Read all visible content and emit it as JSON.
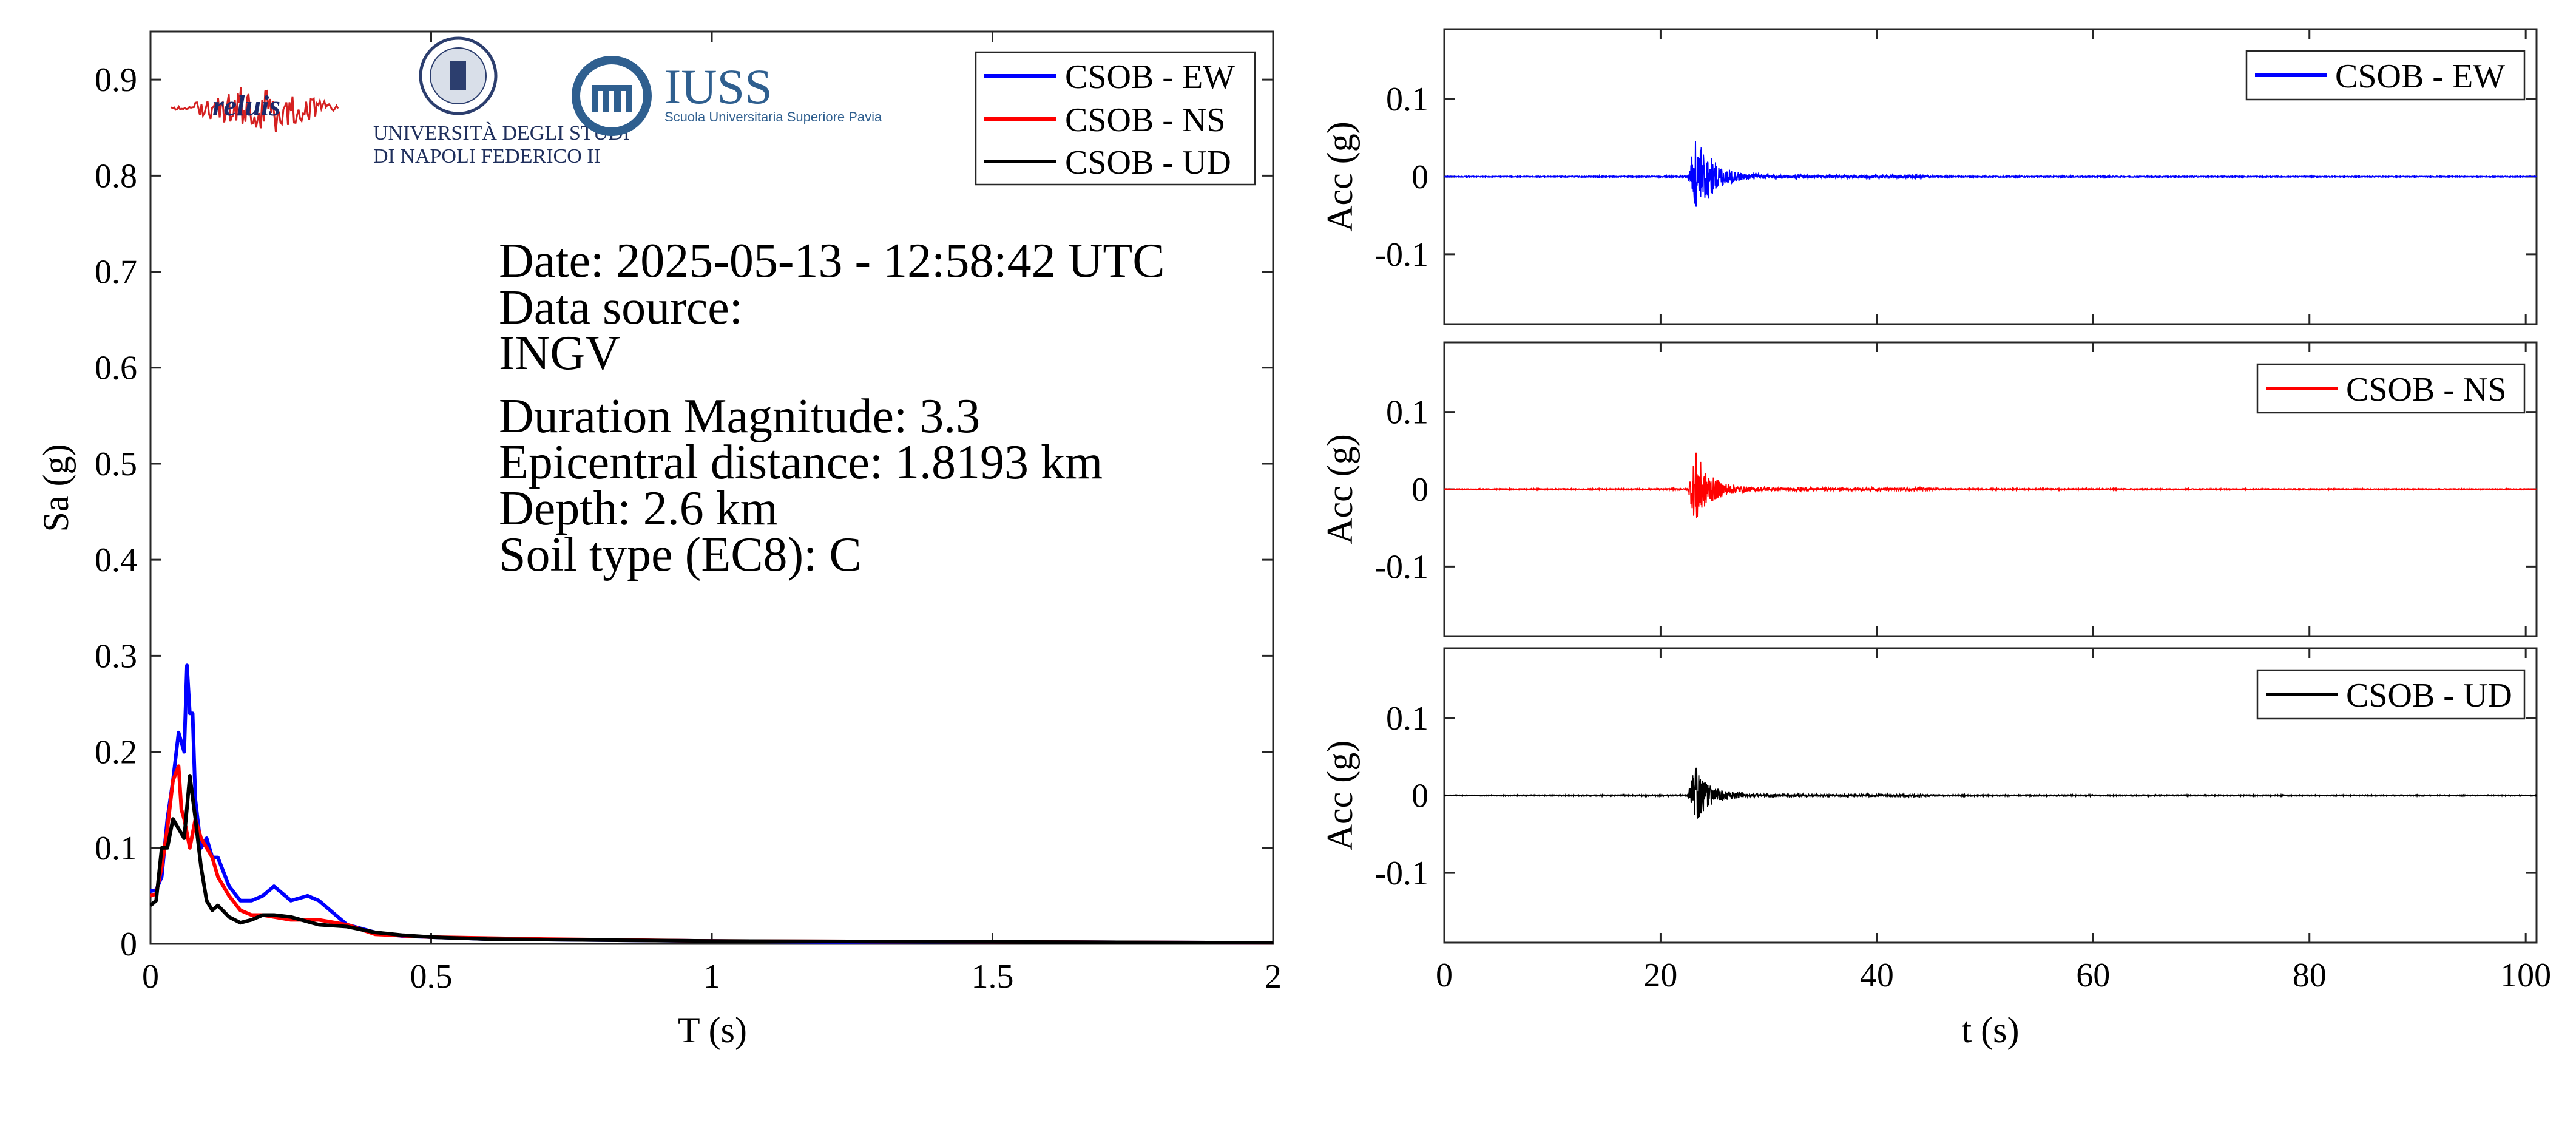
{
  "logos": {
    "reluis": "reluis",
    "unina_line1": "UNIVERSITÀ DEGLI STUDI",
    "unina_line2": "DI NAPOLI FEDERICO II",
    "iuss_name": "IUSS",
    "iuss_sub": "Scuola Universitaria Superiore Pavia"
  },
  "info": {
    "date": "Date: 2025-05-13 - 12:58:42 UTC",
    "source_label": "Data source:",
    "source": "INGV",
    "magnitude": "Duration Magnitude: 3.3",
    "distance": "Epicentral distance: 1.8193 km",
    "depth": "Depth: 2.6 km",
    "soil": "Soil type (EC8): C"
  },
  "colors": {
    "EW": "#0000ff",
    "NS": "#ff0000",
    "UD": "#000000"
  },
  "chart_data": [
    {
      "type": "line",
      "xlabel": "T (s)",
      "ylabel": "Sa (g)",
      "xlim": [
        0,
        2
      ],
      "ylim": [
        0,
        0.95
      ],
      "xticks": [
        "0",
        "0.5",
        "1",
        "1.5",
        "2"
      ],
      "yticks": [
        "0",
        "0.1",
        "0.2",
        "0.3",
        "0.4",
        "0.5",
        "0.6",
        "0.7",
        "0.8",
        "0.9"
      ],
      "legend": "top-right",
      "series": [
        {
          "name": "CSOB - EW",
          "color": "#0000ff",
          "x": [
            0,
            0.01,
            0.02,
            0.03,
            0.04,
            0.05,
            0.06,
            0.065,
            0.07,
            0.075,
            0.08,
            0.09,
            0.1,
            0.11,
            0.12,
            0.14,
            0.16,
            0.18,
            0.2,
            0.22,
            0.25,
            0.28,
            0.3,
            0.32,
            0.35,
            0.4,
            0.45,
            0.5,
            0.6,
            0.8,
            1.0,
            1.2,
            1.5,
            2.0
          ],
          "y": [
            0.055,
            0.056,
            0.07,
            0.13,
            0.17,
            0.22,
            0.2,
            0.29,
            0.24,
            0.24,
            0.15,
            0.1,
            0.11,
            0.09,
            0.09,
            0.06,
            0.045,
            0.045,
            0.05,
            0.06,
            0.045,
            0.05,
            0.045,
            0.035,
            0.02,
            0.012,
            0.008,
            0.007,
            0.005,
            0.004,
            0.003,
            0.002,
            0.002,
            0.001
          ]
        },
        {
          "name": "CSOB - NS",
          "color": "#ff0000",
          "x": [
            0,
            0.01,
            0.02,
            0.03,
            0.04,
            0.05,
            0.055,
            0.06,
            0.07,
            0.08,
            0.09,
            0.1,
            0.11,
            0.12,
            0.14,
            0.16,
            0.18,
            0.2,
            0.25,
            0.3,
            0.35,
            0.4,
            0.5,
            0.7,
            1.0,
            1.5,
            2.0
          ],
          "y": [
            0.05,
            0.052,
            0.08,
            0.12,
            0.17,
            0.185,
            0.14,
            0.13,
            0.1,
            0.13,
            0.11,
            0.1,
            0.09,
            0.07,
            0.05,
            0.035,
            0.03,
            0.03,
            0.025,
            0.025,
            0.02,
            0.01,
            0.007,
            0.005,
            0.003,
            0.002,
            0.001
          ]
        },
        {
          "name": "CSOB - UD",
          "color": "#000000",
          "x": [
            0,
            0.01,
            0.02,
            0.03,
            0.04,
            0.05,
            0.06,
            0.07,
            0.08,
            0.09,
            0.1,
            0.11,
            0.12,
            0.14,
            0.16,
            0.18,
            0.2,
            0.22,
            0.25,
            0.3,
            0.35,
            0.4,
            0.45,
            0.5,
            0.6,
            0.8,
            1.0,
            1.5,
            2.0
          ],
          "y": [
            0.04,
            0.045,
            0.1,
            0.1,
            0.13,
            0.12,
            0.11,
            0.175,
            0.13,
            0.08,
            0.045,
            0.035,
            0.04,
            0.028,
            0.022,
            0.025,
            0.03,
            0.03,
            0.028,
            0.02,
            0.018,
            0.012,
            0.009,
            0.007,
            0.005,
            0.004,
            0.003,
            0.002,
            0.001
          ]
        }
      ]
    },
    {
      "type": "line",
      "xlabel": "",
      "ylabel": "Acc (g)",
      "xlim": [
        0,
        101
      ],
      "ylim": [
        -0.19,
        0.19
      ],
      "yticks": [
        "0.1",
        "0",
        "-0.1"
      ],
      "legend": "top-right",
      "series": [
        {
          "name": "CSOB - EW",
          "color": "#0000ff",
          "peak": 0.05,
          "envelope": [
            [
              0,
              0.0005
            ],
            [
              22.5,
              0.0008
            ],
            [
              23.2,
              0.05
            ],
            [
              24,
              0.035
            ],
            [
              25,
              0.02
            ],
            [
              26,
              0.01
            ],
            [
              28,
              0.004
            ],
            [
              32,
              0.0015
            ],
            [
              33,
              0.003
            ],
            [
              34,
              0.0015
            ],
            [
              44,
              0.002
            ],
            [
              46,
              0.0008
            ],
            [
              101,
              0.0005
            ]
          ]
        }
      ]
    },
    {
      "type": "line",
      "xlabel": "",
      "ylabel": "Acc (g)",
      "xlim": [
        0,
        101
      ],
      "ylim": [
        -0.19,
        0.19
      ],
      "yticks": [
        "0.1",
        "0",
        "-0.1"
      ],
      "legend": "top-right",
      "series": [
        {
          "name": "CSOB - NS",
          "color": "#ff0000",
          "peak": 0.05,
          "envelope": [
            [
              0,
              0.0005
            ],
            [
              22.5,
              0.0008
            ],
            [
              23.3,
              0.05
            ],
            [
              24,
              0.025
            ],
            [
              25,
              0.014
            ],
            [
              26,
              0.008
            ],
            [
              28,
              0.003
            ],
            [
              32,
              0.0015
            ],
            [
              33,
              0.003
            ],
            [
              34,
              0.0015
            ],
            [
              44,
              0.002
            ],
            [
              46,
              0.0008
            ],
            [
              101,
              0.0005
            ]
          ]
        }
      ]
    },
    {
      "type": "line",
      "xlabel": "t (s)",
      "ylabel": "Acc (g)",
      "xlim": [
        0,
        101
      ],
      "ylim": [
        -0.19,
        0.19
      ],
      "xticks": [
        "0",
        "20",
        "40",
        "60",
        "80",
        "100"
      ],
      "yticks": [
        "0.1",
        "0",
        "-0.1"
      ],
      "legend": "top-right",
      "series": [
        {
          "name": "CSOB - UD",
          "color": "#000000",
          "peak": 0.04,
          "envelope": [
            [
              0,
              0.0005
            ],
            [
              22.5,
              0.0008
            ],
            [
              23.2,
              0.04
            ],
            [
              24,
              0.02
            ],
            [
              25,
              0.01
            ],
            [
              26,
              0.006
            ],
            [
              28,
              0.002
            ],
            [
              32,
              0.0015
            ],
            [
              33,
              0.002
            ],
            [
              34,
              0.0012
            ],
            [
              44,
              0.0015
            ],
            [
              46,
              0.0008
            ],
            [
              101,
              0.0005
            ]
          ]
        }
      ]
    }
  ]
}
